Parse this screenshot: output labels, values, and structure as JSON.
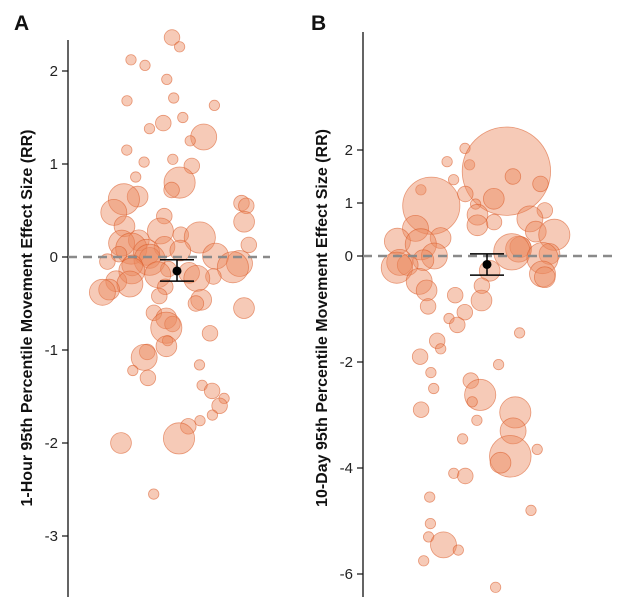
{
  "figure": {
    "panels": [
      "A",
      "B"
    ]
  },
  "colors": {
    "bubble_fill": "#eb8a5f",
    "bubble_stroke": "#d9541f",
    "reference_line": "#8a8a8a",
    "summary": "#000000"
  },
  "chart_data": [
    {
      "type": "scatter",
      "panel": "A",
      "title": "",
      "xlabel": "",
      "ylabel": "1-Hour 95th Percentile Movement Effect Size (RR)",
      "ylim": [
        -3.6,
        2.4
      ],
      "yticks": [
        -3,
        -2,
        -1,
        0,
        1,
        2
      ],
      "ytick_labels": [
        "-3",
        "-2",
        "-1",
        "0",
        "1",
        "2"
      ],
      "reference_line_y": 0,
      "grid": false,
      "summary": {
        "estimate": -0.15,
        "ci": [
          -0.26,
          -0.03
        ]
      },
      "points": [
        {
          "y": 2.36,
          "w": 3
        },
        {
          "y": 2.26,
          "w": 2
        },
        {
          "y": 2.12,
          "w": 2
        },
        {
          "y": 2.06,
          "w": 2
        },
        {
          "y": 1.91,
          "w": 2
        },
        {
          "y": 1.71,
          "w": 2
        },
        {
          "y": 1.68,
          "w": 2
        },
        {
          "y": 1.63,
          "w": 2
        },
        {
          "y": 1.5,
          "w": 2
        },
        {
          "y": 1.44,
          "w": 3
        },
        {
          "y": 1.38,
          "w": 2
        },
        {
          "y": 1.29,
          "w": 5
        },
        {
          "y": 1.25,
          "w": 2
        },
        {
          "y": 1.15,
          "w": 2
        },
        {
          "y": 1.05,
          "w": 2
        },
        {
          "y": 1.02,
          "w": 2
        },
        {
          "y": 0.98,
          "w": 3
        },
        {
          "y": 0.86,
          "w": 2
        },
        {
          "y": 0.8,
          "w": 6
        },
        {
          "y": 0.72,
          "w": 3
        },
        {
          "y": 0.65,
          "w": 4
        },
        {
          "y": 0.62,
          "w": 6
        },
        {
          "y": 0.58,
          "w": 3
        },
        {
          "y": 0.55,
          "w": 3
        },
        {
          "y": 0.48,
          "w": 5
        },
        {
          "y": 0.44,
          "w": 3
        },
        {
          "y": 0.38,
          "w": 4
        },
        {
          "y": 0.33,
          "w": 4
        },
        {
          "y": 0.28,
          "w": 5
        },
        {
          "y": 0.24,
          "w": 3
        },
        {
          "y": 0.21,
          "w": 6
        },
        {
          "y": 0.18,
          "w": 4
        },
        {
          "y": 0.15,
          "w": 5
        },
        {
          "y": 0.13,
          "w": 3
        },
        {
          "y": 0.11,
          "w": 4
        },
        {
          "y": 0.09,
          "w": 6
        },
        {
          "y": 0.07,
          "w": 4
        },
        {
          "y": 0.05,
          "w": 5
        },
        {
          "y": 0.03,
          "w": 3
        },
        {
          "y": 0.01,
          "w": 5
        },
        {
          "y": -0.01,
          "w": 4
        },
        {
          "y": -0.03,
          "w": 6
        },
        {
          "y": -0.05,
          "w": 3
        },
        {
          "y": -0.07,
          "w": 5
        },
        {
          "y": -0.09,
          "w": 4
        },
        {
          "y": -0.11,
          "w": 6
        },
        {
          "y": -0.13,
          "w": 3
        },
        {
          "y": -0.15,
          "w": 5
        },
        {
          "y": -0.17,
          "w": 4
        },
        {
          "y": -0.19,
          "w": 5
        },
        {
          "y": -0.21,
          "w": 3
        },
        {
          "y": -0.23,
          "w": 5
        },
        {
          "y": -0.26,
          "w": 4
        },
        {
          "y": -0.29,
          "w": 5
        },
        {
          "y": -0.32,
          "w": 3
        },
        {
          "y": -0.35,
          "w": 4
        },
        {
          "y": -0.38,
          "w": 5
        },
        {
          "y": -0.42,
          "w": 3
        },
        {
          "y": -0.46,
          "w": 4
        },
        {
          "y": -0.5,
          "w": 3
        },
        {
          "y": -0.55,
          "w": 4
        },
        {
          "y": -0.6,
          "w": 3
        },
        {
          "y": -0.66,
          "w": 4
        },
        {
          "y": -0.72,
          "w": 3
        },
        {
          "y": -0.76,
          "w": 6
        },
        {
          "y": -0.82,
          "w": 3
        },
        {
          "y": -0.9,
          "w": 2
        },
        {
          "y": -0.96,
          "w": 4
        },
        {
          "y": -1.02,
          "w": 3
        },
        {
          "y": -1.08,
          "w": 5
        },
        {
          "y": -1.16,
          "w": 2
        },
        {
          "y": -1.22,
          "w": 2
        },
        {
          "y": -1.3,
          "w": 3
        },
        {
          "y": -1.38,
          "w": 2
        },
        {
          "y": -1.44,
          "w": 3
        },
        {
          "y": -1.52,
          "w": 2
        },
        {
          "y": -1.6,
          "w": 3
        },
        {
          "y": -1.7,
          "w": 2
        },
        {
          "y": -1.76,
          "w": 2
        },
        {
          "y": -1.82,
          "w": 3
        },
        {
          "y": -1.95,
          "w": 6
        },
        {
          "y": -2.0,
          "w": 4
        },
        {
          "y": -2.55,
          "w": 2
        }
      ]
    },
    {
      "type": "scatter",
      "panel": "B",
      "title": "",
      "xlabel": "",
      "ylabel": "10-Day 95th Percentile Movement Effect Size (RR)",
      "ylim": [
        -6.3,
        2.2
      ],
      "yticks": [
        -6,
        -4,
        -2,
        0,
        1,
        2
      ],
      "ytick_labels": [
        "-6",
        "-4",
        "-2",
        "0",
        "1",
        "2"
      ],
      "reference_line_y": 0,
      "grid": false,
      "summary": {
        "estimate": -0.16,
        "ci": [
          -0.36,
          0.04
        ]
      },
      "points": [
        {
          "y": 2.03,
          "w": 2
        },
        {
          "y": 1.78,
          "w": 2
        },
        {
          "y": 1.72,
          "w": 2
        },
        {
          "y": 1.6,
          "w": 17
        },
        {
          "y": 1.5,
          "w": 3
        },
        {
          "y": 1.44,
          "w": 2
        },
        {
          "y": 1.36,
          "w": 3
        },
        {
          "y": 1.25,
          "w": 2
        },
        {
          "y": 1.17,
          "w": 3
        },
        {
          "y": 1.08,
          "w": 4
        },
        {
          "y": 0.98,
          "w": 2
        },
        {
          "y": 0.95,
          "w": 11
        },
        {
          "y": 0.86,
          "w": 3
        },
        {
          "y": 0.78,
          "w": 4
        },
        {
          "y": 0.7,
          "w": 5
        },
        {
          "y": 0.64,
          "w": 3
        },
        {
          "y": 0.58,
          "w": 4
        },
        {
          "y": 0.52,
          "w": 5
        },
        {
          "y": 0.46,
          "w": 4
        },
        {
          "y": 0.4,
          "w": 6
        },
        {
          "y": 0.34,
          "w": 4
        },
        {
          "y": 0.28,
          "w": 5
        },
        {
          "y": 0.22,
          "w": 6
        },
        {
          "y": 0.17,
          "w": 4
        },
        {
          "y": 0.13,
          "w": 5
        },
        {
          "y": 0.08,
          "w": 7
        },
        {
          "y": 0.04,
          "w": 4
        },
        {
          "y": 0.0,
          "w": 5
        },
        {
          "y": -0.04,
          "w": 6
        },
        {
          "y": -0.08,
          "w": 4
        },
        {
          "y": -0.12,
          "w": 5
        },
        {
          "y": -0.17,
          "w": 4
        },
        {
          "y": -0.22,
          "w": 6
        },
        {
          "y": -0.28,
          "w": 4
        },
        {
          "y": -0.34,
          "w": 5
        },
        {
          "y": -0.4,
          "w": 4
        },
        {
          "y": -0.48,
          "w": 5
        },
        {
          "y": -0.56,
          "w": 3
        },
        {
          "y": -0.65,
          "w": 4
        },
        {
          "y": -0.74,
          "w": 3
        },
        {
          "y": -0.84,
          "w": 4
        },
        {
          "y": -0.95,
          "w": 3
        },
        {
          "y": -1.06,
          "w": 3
        },
        {
          "y": -1.18,
          "w": 2
        },
        {
          "y": -1.3,
          "w": 3
        },
        {
          "y": -1.45,
          "w": 2
        },
        {
          "y": -1.6,
          "w": 3
        },
        {
          "y": -1.75,
          "w": 2
        },
        {
          "y": -1.9,
          "w": 3
        },
        {
          "y": -2.05,
          "w": 2
        },
        {
          "y": -2.2,
          "w": 2
        },
        {
          "y": -2.35,
          "w": 3
        },
        {
          "y": -2.5,
          "w": 2
        },
        {
          "y": -2.62,
          "w": 6
        },
        {
          "y": -2.75,
          "w": 2
        },
        {
          "y": -2.9,
          "w": 3
        },
        {
          "y": -2.95,
          "w": 6
        },
        {
          "y": -3.1,
          "w": 2
        },
        {
          "y": -3.3,
          "w": 5
        },
        {
          "y": -3.45,
          "w": 2
        },
        {
          "y": -3.65,
          "w": 2
        },
        {
          "y": -3.78,
          "w": 8
        },
        {
          "y": -3.9,
          "w": 4
        },
        {
          "y": -4.1,
          "w": 2
        },
        {
          "y": -4.15,
          "w": 3
        },
        {
          "y": -4.55,
          "w": 2
        },
        {
          "y": -4.8,
          "w": 2
        },
        {
          "y": -5.05,
          "w": 2
        },
        {
          "y": -5.3,
          "w": 2
        },
        {
          "y": -5.45,
          "w": 5
        },
        {
          "y": -5.55,
          "w": 2
        },
        {
          "y": -5.75,
          "w": 2
        },
        {
          "y": -6.25,
          "w": 2
        }
      ]
    }
  ]
}
